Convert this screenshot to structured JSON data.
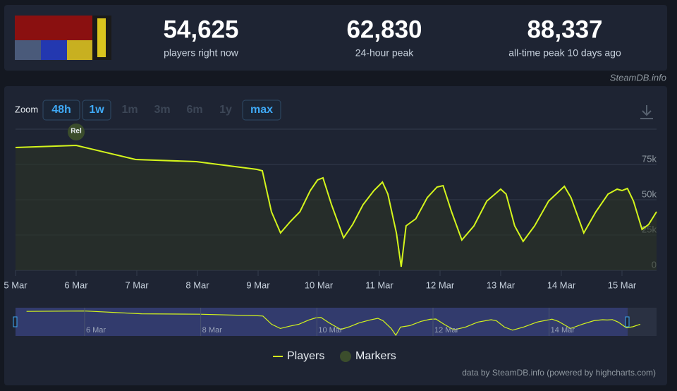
{
  "header": {
    "stats": [
      {
        "value": "54,625",
        "label": "players right now"
      },
      {
        "value": "62,830",
        "label": "24-hour peak"
      },
      {
        "value": "88,337",
        "label": "all-time peak 10 days ago"
      }
    ],
    "source": "SteamDB.info"
  },
  "zoom": {
    "label": "Zoom",
    "buttons": [
      {
        "label": "48h",
        "enabled": true
      },
      {
        "label": "1w",
        "enabled": true
      },
      {
        "label": "1m",
        "enabled": false
      },
      {
        "label": "3m",
        "enabled": false
      },
      {
        "label": "6m",
        "enabled": false
      },
      {
        "label": "1y",
        "enabled": false
      },
      {
        "label": "max",
        "enabled": true
      }
    ]
  },
  "chart_data": {
    "type": "line",
    "x": [
      0,
      1,
      1.98,
      2.98,
      3.98,
      4.07,
      4.22,
      4.37,
      4.53,
      4.69,
      4.86,
      4.98,
      5.07,
      5.21,
      5.41,
      5.56,
      5.73,
      5.91,
      6.05,
      6.14,
      6.28,
      6.36,
      6.44,
      6.6,
      6.79,
      6.95,
      7.05,
      7.19,
      7.36,
      7.56,
      7.77,
      8.0,
      8.09,
      8.23,
      8.37,
      8.56,
      8.79,
      9.05,
      9.16,
      9.37,
      9.57,
      9.77,
      9.92,
      10.0,
      10.09,
      10.19,
      10.33,
      10.44,
      10.57
    ],
    "series": [
      {
        "name": "Players",
        "color": "#d4f51c",
        "values": [
          87000,
          88500,
          78500,
          77000,
          71500,
          70500,
          41500,
          26500,
          34500,
          41500,
          56500,
          64000,
          65500,
          46500,
          23000,
          32500,
          46500,
          56500,
          62500,
          54000,
          26500,
          2500,
          31500,
          36500,
          51500,
          59000,
          60000,
          41500,
          21500,
          31500,
          49000,
          57500,
          54000,
          31500,
          20500,
          31500,
          49000,
          59500,
          51500,
          26500,
          41500,
          54000,
          57500,
          56500,
          58000,
          49000,
          29000,
          32500,
          41500
        ]
      }
    ],
    "markers": {
      "name": "Markers",
      "color": "#3b4d2c",
      "points": [
        {
          "x": 1,
          "label": "Rel"
        }
      ]
    },
    "xlim": [
      0,
      10.57
    ],
    "xticks": [
      {
        "value": 0,
        "label": "5 Mar"
      },
      {
        "value": 1,
        "label": "6 Mar"
      },
      {
        "value": 2,
        "label": "7 Mar"
      },
      {
        "value": 3,
        "label": "8 Mar"
      },
      {
        "value": 4,
        "label": "9 Mar"
      },
      {
        "value": 5,
        "label": "10 Mar"
      },
      {
        "value": 6,
        "label": "11 Mar"
      },
      {
        "value": 7,
        "label": "12 Mar"
      },
      {
        "value": 8,
        "label": "13 Mar"
      },
      {
        "value": 9,
        "label": "14 Mar"
      },
      {
        "value": 10,
        "label": "15 Mar"
      }
    ],
    "ylim": [
      0,
      100000
    ],
    "yticks": [
      0,
      {
        "value": 25000,
        "label": "25k"
      },
      {
        "value": 50000,
        "label": "50k"
      },
      {
        "value": 75000,
        "label": "75k"
      }
    ],
    "grid": true,
    "navigator": {
      "xlim": [
        -0.19,
        10.85
      ],
      "xticks": [
        {
          "value": 1,
          "label": "6 Mar"
        },
        {
          "value": 3,
          "label": "8 Mar"
        },
        {
          "value": 5,
          "label": "10 Mar"
        },
        {
          "value": 7,
          "label": "12 Mar"
        },
        {
          "value": 9,
          "label": "14 Mar"
        }
      ]
    },
    "credit": "data by SteamDB.info (powered by highcharts.com)"
  }
}
